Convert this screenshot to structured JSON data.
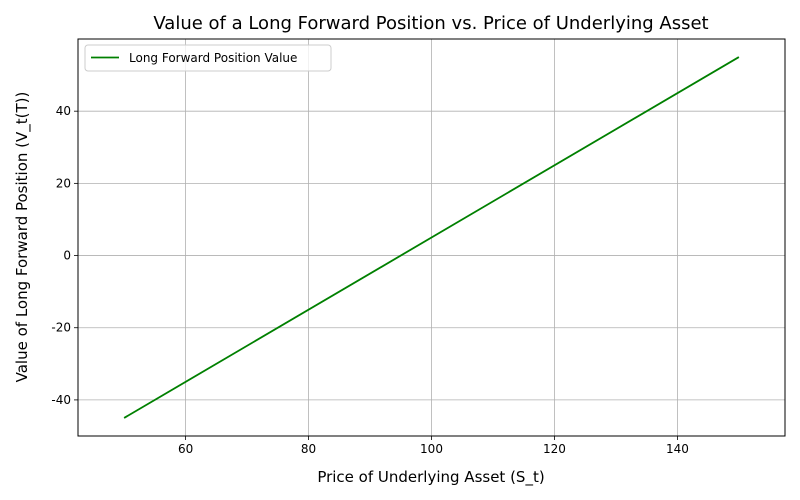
{
  "chart_data": {
    "type": "line",
    "title": "Value of a Long Forward Position vs. Price of Underlying Asset",
    "xlabel": "Price of Underlying Asset (S_t)",
    "ylabel": "Value of Long Forward Position (V_t(T))",
    "xlim": [
      42.5,
      157.5
    ],
    "ylim": [
      -50,
      60
    ],
    "xticks": [
      60,
      80,
      100,
      120,
      140
    ],
    "yticks": [
      -40,
      -20,
      0,
      20,
      40
    ],
    "grid": true,
    "legend_position": "upper-left",
    "series": [
      {
        "name": "Long Forward Position Value",
        "color": "#008000",
        "x": [
          50,
          150
        ],
        "y": [
          -45,
          55
        ]
      }
    ]
  }
}
